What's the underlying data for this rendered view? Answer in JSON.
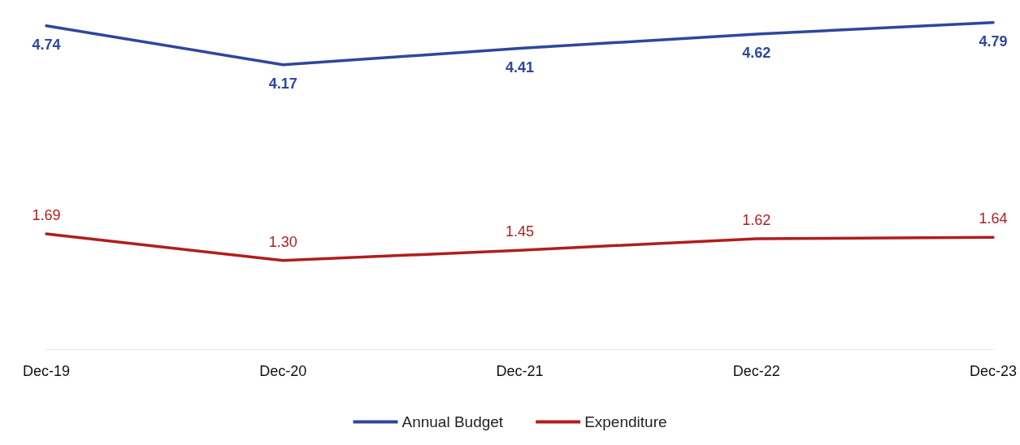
{
  "chart_data": {
    "type": "line",
    "categories": [
      "Dec-19",
      "Dec-20",
      "Dec-21",
      "Dec-22",
      "Dec-23"
    ],
    "series": [
      {
        "name": "Annual Budget",
        "color": "#2e479c",
        "values": [
          4.74,
          4.17,
          4.41,
          4.62,
          4.79
        ],
        "value_labels": [
          "4.74",
          "4.17",
          "4.41",
          "4.62",
          "4.79"
        ]
      },
      {
        "name": "Expenditure",
        "color": "#b01e1e",
        "values": [
          1.69,
          1.3,
          1.45,
          1.62,
          1.64
        ],
        "value_labels": [
          "1.69",
          "1.30",
          "1.45",
          "1.62",
          "1.64"
        ]
      }
    ],
    "tick_labels": "x",
    "legend": "bottom",
    "grid": false,
    "marker": "none",
    "line_style": "solid"
  }
}
